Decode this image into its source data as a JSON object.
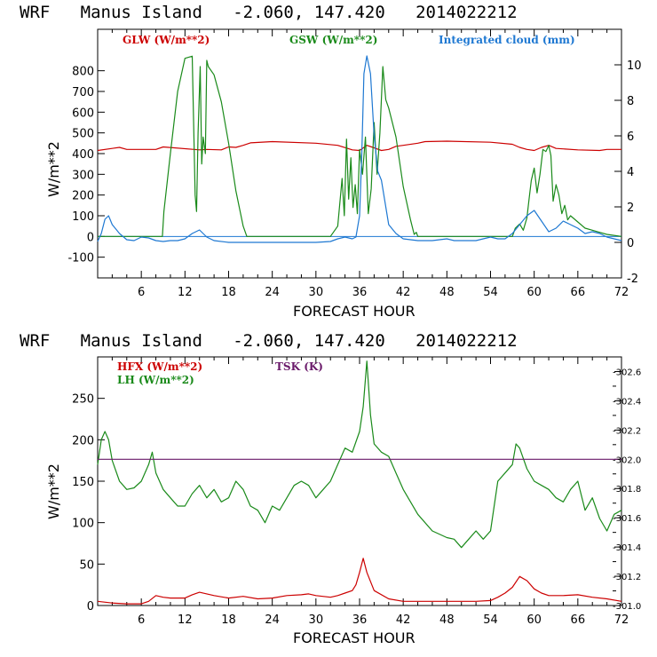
{
  "chart_data": [
    {
      "type": "line",
      "title": "WRF   Manus Island   -2.060, 147.420   2014022212",
      "xlabel": "FORECAST HOUR",
      "ylabel": "W/m**2",
      "xlim": [
        0,
        72
      ],
      "ylim": [
        -200,
        1000
      ],
      "y2lim": [
        -2,
        12
      ],
      "x_ticks": [
        6,
        12,
        18,
        24,
        30,
        36,
        42,
        48,
        54,
        60,
        66,
        72
      ],
      "y_ticks": [
        -100,
        0,
        100,
        200,
        300,
        400,
        500,
        600,
        700,
        800
      ],
      "y2_ticks": [
        -2,
        0,
        2,
        4,
        6,
        8,
        10
      ],
      "legend": [
        "GLW (W/m**2)",
        "GSW (W/m**2)",
        "Integrated cloud (mm)"
      ],
      "series": [
        {
          "name": "GLW (W/m**2)",
          "color": "#cc0000",
          "axis": "left",
          "x": [
            0,
            3,
            4,
            8,
            9,
            14,
            15,
            17,
            18,
            19,
            20,
            21,
            24,
            30,
            33,
            35,
            36,
            37,
            38,
            39,
            40,
            41,
            42,
            44,
            45,
            48,
            54,
            57,
            58,
            59,
            60,
            61,
            62,
            63,
            66,
            69,
            70,
            72
          ],
          "y": [
            415,
            430,
            420,
            420,
            432,
            418,
            420,
            418,
            432,
            430,
            440,
            452,
            458,
            450,
            440,
            418,
            415,
            440,
            428,
            415,
            420,
            435,
            440,
            450,
            458,
            460,
            455,
            445,
            430,
            420,
            415,
            430,
            440,
            425,
            418,
            415,
            420,
            420
          ]
        },
        {
          "name": "GSW (W/m**2)",
          "color": "#1a8a1a",
          "axis": "left",
          "x": [
            0,
            8.9,
            9.1,
            10,
            11,
            12,
            13,
            13.4,
            13.6,
            13.8,
            14.1,
            14.3,
            14.5,
            14.8,
            15,
            15.2,
            16,
            17,
            18,
            19,
            20,
            20.5,
            32,
            33,
            33.6,
            33.9,
            34.2,
            34.5,
            34.8,
            35.1,
            35.4,
            35.7,
            36,
            36.4,
            36.8,
            37.2,
            37.6,
            38,
            38.4,
            38.8,
            39.2,
            39.6,
            40,
            41,
            42,
            43,
            43.5,
            43.8,
            44,
            57,
            57.4,
            58,
            58.5,
            59,
            59.3,
            59.6,
            60,
            60.4,
            60.8,
            61.2,
            61.6,
            62,
            62.3,
            62.6,
            63,
            63.4,
            63.8,
            64.2,
            64.6,
            65,
            66,
            67,
            68,
            69,
            70,
            72
          ],
          "y": [
            0,
            0,
            120,
            400,
            700,
            860,
            870,
            200,
            120,
            500,
            820,
            350,
            480,
            400,
            850,
            820,
            780,
            650,
            450,
            220,
            50,
            0,
            0,
            50,
            280,
            100,
            470,
            180,
            380,
            140,
            250,
            110,
            420,
            300,
            480,
            110,
            230,
            550,
            300,
            500,
            820,
            660,
            620,
            480,
            240,
            80,
            10,
            20,
            0,
            0,
            40,
            60,
            30,
            90,
            180,
            270,
            330,
            210,
            300,
            420,
            410,
            440,
            390,
            170,
            250,
            200,
            110,
            150,
            80,
            100,
            70,
            40,
            30,
            20,
            10,
            0
          ]
        },
        {
          "name": "Integrated cloud (mm)",
          "color": "#1e78d2",
          "axis": "right",
          "x": [
            0,
            0.5,
            1,
            1.5,
            2,
            3,
            4,
            5,
            6,
            7,
            8,
            9,
            10,
            11,
            12,
            13,
            14,
            15,
            16,
            18,
            20,
            22,
            24,
            26,
            28,
            30,
            32,
            33,
            34,
            35,
            35.5,
            36,
            36.3,
            36.6,
            37,
            37.5,
            38,
            38.5,
            39,
            40,
            41,
            42,
            44,
            46,
            48,
            49,
            50,
            52,
            54,
            55,
            56,
            57,
            58,
            59,
            60,
            61,
            62,
            63,
            64,
            65,
            66,
            67,
            68,
            69,
            70,
            71,
            72
          ],
          "y": [
            0.05,
            0.5,
            1.3,
            1.5,
            1.0,
            0.5,
            0.15,
            0.1,
            0.3,
            0.25,
            0.1,
            0.05,
            0.1,
            0.1,
            0.2,
            0.5,
            0.7,
            0.3,
            0.1,
            0,
            0,
            0,
            0,
            0,
            0,
            0,
            0.05,
            0.2,
            0.3,
            0.2,
            0.3,
            1.5,
            5,
            9.5,
            10.5,
            9.5,
            6,
            4,
            3.5,
            1,
            0.5,
            0.2,
            0.1,
            0.1,
            0.2,
            0.1,
            0.1,
            0.1,
            0.3,
            0.2,
            0.2,
            0.5,
            1,
            1.5,
            1.8,
            1.2,
            0.6,
            0.8,
            1.2,
            1.0,
            0.8,
            0.5,
            0.6,
            0.5,
            0.3,
            0.2,
            0.1
          ]
        }
      ]
    },
    {
      "type": "line",
      "title": "WRF   Manus Island   -2.060, 147.420   2014022212",
      "xlabel": "FORECAST HOUR",
      "ylabel": "W/m**2",
      "xlim": [
        0,
        72
      ],
      "ylim": [
        0,
        300
      ],
      "y2lim": [
        301.0,
        302.7
      ],
      "x_ticks": [
        6,
        12,
        18,
        24,
        30,
        36,
        42,
        48,
        54,
        60,
        66,
        72
      ],
      "y_ticks": [
        0,
        50,
        100,
        150,
        200,
        250
      ],
      "y2_ticks": [
        "301.0",
        "301.2",
        "301.4",
        "301.6",
        "301.8",
        "302.0",
        "302.2",
        "302.4",
        "302.6"
      ],
      "legend": [
        "HFX (W/m**2)",
        "LH (W/m**2)",
        "TSK (K)"
      ],
      "series": [
        {
          "name": "HFX (W/m**2)",
          "color": "#cc0000",
          "x": [
            0,
            2,
            4,
            6,
            7,
            8,
            9,
            10,
            12,
            13,
            14,
            15,
            16,
            18,
            20,
            22,
            24,
            26,
            28,
            29,
            30,
            32,
            33,
            34,
            35,
            35.5,
            36,
            36.5,
            37,
            38,
            40,
            42,
            44,
            46,
            48,
            50,
            52,
            54,
            55,
            56,
            57,
            58,
            59,
            60,
            61,
            62,
            64,
            66,
            68,
            70,
            72
          ],
          "y": [
            5,
            3,
            2,
            2,
            5,
            12,
            10,
            9,
            9,
            13,
            16,
            14,
            12,
            9,
            11,
            8,
            9,
            12,
            13,
            14,
            12,
            10,
            12,
            15,
            18,
            25,
            40,
            57,
            40,
            18,
            8,
            5,
            5,
            5,
            5,
            5,
            5,
            6,
            10,
            15,
            22,
            35,
            30,
            20,
            15,
            12,
            12,
            13,
            10,
            8,
            5
          ]
        },
        {
          "name": "LH (W/m**2)",
          "color": "#1a8a1a",
          "x": [
            0,
            0.5,
            1,
            1.5,
            2,
            3,
            4,
            5,
            6,
            7,
            7.5,
            8,
            8.5,
            9,
            10,
            11,
            12,
            13,
            14,
            15,
            16,
            17,
            18,
            19,
            20,
            21,
            22,
            23,
            24,
            25,
            26,
            27,
            28,
            29,
            30,
            31,
            32,
            33,
            34,
            35,
            36,
            36.5,
            37,
            37.5,
            38,
            39,
            40,
            41,
            42,
            44,
            46,
            48,
            49,
            50,
            51,
            52,
            53,
            54,
            55,
            56,
            57,
            57.5,
            58,
            59,
            60,
            61,
            62,
            63,
            64,
            65,
            66,
            67,
            68,
            69,
            70,
            71,
            72
          ],
          "y": [
            170,
            200,
            210,
            200,
            175,
            150,
            140,
            142,
            150,
            170,
            185,
            160,
            150,
            140,
            130,
            120,
            120,
            135,
            145,
            130,
            140,
            125,
            130,
            150,
            140,
            120,
            115,
            100,
            120,
            115,
            130,
            145,
            150,
            145,
            130,
            140,
            150,
            170,
            190,
            185,
            210,
            240,
            295,
            230,
            195,
            185,
            180,
            160,
            140,
            110,
            90,
            82,
            80,
            70,
            80,
            90,
            80,
            90,
            150,
            160,
            170,
            195,
            190,
            165,
            150,
            145,
            140,
            130,
            125,
            140,
            150,
            115,
            130,
            105,
            90,
            110,
            115
          ]
        },
        {
          "name": "TSK (K)",
          "color": "#6a1a6a",
          "axis": "right",
          "x": [
            0,
            72
          ],
          "y": [
            302.0,
            302.0
          ]
        }
      ]
    }
  ]
}
